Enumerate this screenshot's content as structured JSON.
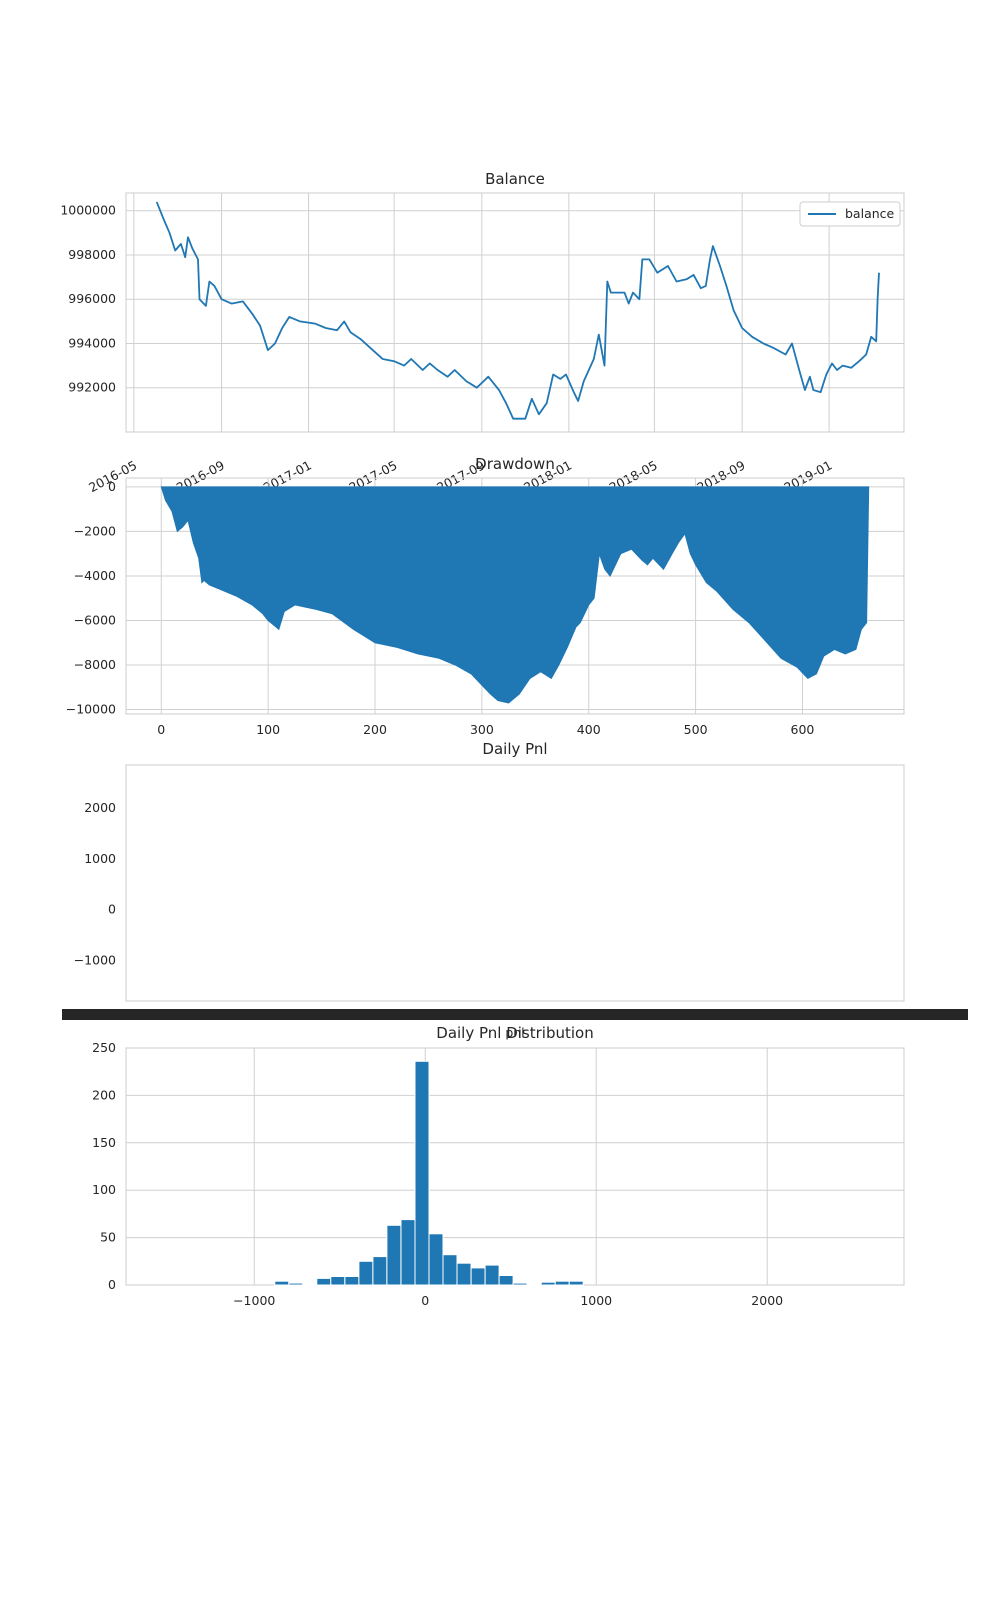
{
  "chart_data": [
    {
      "type": "line",
      "title": "Balance",
      "xlabel": "",
      "ylabel": "",
      "grid": true,
      "legend": "top-right",
      "xlim": [
        "2016-04-20",
        "2019-04-16"
      ],
      "ylim": [
        990000,
        1000800
      ],
      "x_ticks": [
        "2016-05",
        "2016-09",
        "2017-01",
        "2017-05",
        "2017-09",
        "2018-01",
        "2018-05",
        "2018-09",
        "2019-01"
      ],
      "y_ticks": [
        992000,
        994000,
        996000,
        998000,
        1000000
      ],
      "color": "#1f77b4",
      "series": [
        {
          "name": "balance",
          "points": [
            [
              "2016-06-02",
              1000400
            ],
            [
              "2016-06-12",
              999600
            ],
            [
              "2016-06-20",
              999000
            ],
            [
              "2016-06-28",
              998200
            ],
            [
              "2016-07-06",
              998500
            ],
            [
              "2016-07-12",
              997900
            ],
            [
              "2016-07-16",
              998800
            ],
            [
              "2016-07-22",
              998300
            ],
            [
              "2016-07-30",
              997800
            ],
            [
              "2016-08-01",
              996000
            ],
            [
              "2016-08-10",
              995700
            ],
            [
              "2016-08-15",
              996800
            ],
            [
              "2016-08-22",
              996600
            ],
            [
              "2016-09-01",
              996000
            ],
            [
              "2016-09-15",
              995800
            ],
            [
              "2016-10-01",
              995900
            ],
            [
              "2016-10-15",
              995300
            ],
            [
              "2016-10-25",
              994800
            ],
            [
              "2016-11-05",
              993700
            ],
            [
              "2016-11-15",
              994000
            ],
            [
              "2016-11-25",
              994700
            ],
            [
              "2016-12-05",
              995200
            ],
            [
              "2016-12-20",
              995000
            ],
            [
              "2017-01-10",
              994900
            ],
            [
              "2017-01-25",
              994700
            ],
            [
              "2017-02-10",
              994600
            ],
            [
              "2017-02-20",
              995000
            ],
            [
              "2017-03-01",
              994500
            ],
            [
              "2017-03-15",
              994200
            ],
            [
              "2017-04-01",
              993700
            ],
            [
              "2017-04-15",
              993300
            ],
            [
              "2017-05-01",
              993200
            ],
            [
              "2017-05-15",
              993000
            ],
            [
              "2017-05-25",
              993300
            ],
            [
              "2017-06-10",
              992800
            ],
            [
              "2017-06-20",
              993100
            ],
            [
              "2017-07-01",
              992800
            ],
            [
              "2017-07-15",
              992500
            ],
            [
              "2017-07-25",
              992800
            ],
            [
              "2017-08-10",
              992300
            ],
            [
              "2017-08-25",
              992000
            ],
            [
              "2017-09-10",
              992500
            ],
            [
              "2017-09-25",
              991900
            ],
            [
              "2017-10-05",
              991300
            ],
            [
              "2017-10-15",
              990600
            ],
            [
              "2017-11-01",
              990600
            ],
            [
              "2017-11-10",
              991500
            ],
            [
              "2017-11-20",
              990800
            ],
            [
              "2017-12-01",
              991300
            ],
            [
              "2017-12-10",
              992600
            ],
            [
              "2017-12-20",
              992400
            ],
            [
              "2017-12-28",
              992600
            ],
            [
              "2018-01-08",
              991800
            ],
            [
              "2018-01-14",
              991400
            ],
            [
              "2018-01-22",
              992300
            ],
            [
              "2018-02-05",
              993300
            ],
            [
              "2018-02-12",
              994400
            ],
            [
              "2018-02-20",
              993000
            ],
            [
              "2018-02-24",
              996800
            ],
            [
              "2018-03-01",
              996300
            ],
            [
              "2018-03-20",
              996300
            ],
            [
              "2018-03-26",
              995800
            ],
            [
              "2018-04-01",
              996300
            ],
            [
              "2018-04-10",
              996000
            ],
            [
              "2018-04-14",
              997800
            ],
            [
              "2018-04-24",
              997800
            ],
            [
              "2018-05-05",
              997200
            ],
            [
              "2018-05-20",
              997500
            ],
            [
              "2018-06-01",
              996800
            ],
            [
              "2018-06-15",
              996900
            ],
            [
              "2018-06-25",
              997100
            ],
            [
              "2018-07-05",
              996500
            ],
            [
              "2018-07-12",
              996600
            ],
            [
              "2018-07-18",
              997800
            ],
            [
              "2018-07-22",
              998400
            ],
            [
              "2018-08-01",
              997500
            ],
            [
              "2018-08-10",
              996600
            ],
            [
              "2018-08-20",
              995500
            ],
            [
              "2018-09-01",
              994700
            ],
            [
              "2018-09-15",
              994300
            ],
            [
              "2018-10-01",
              994000
            ],
            [
              "2018-10-15",
              993800
            ],
            [
              "2018-11-01",
              993500
            ],
            [
              "2018-11-10",
              994000
            ],
            [
              "2018-11-20",
              992800
            ],
            [
              "2018-11-28",
              991900
            ],
            [
              "2018-12-05",
              992500
            ],
            [
              "2018-12-10",
              991900
            ],
            [
              "2018-12-20",
              991800
            ],
            [
              "2018-12-28",
              992600
            ],
            [
              "2019-01-05",
              993100
            ],
            [
              "2019-01-12",
              992800
            ],
            [
              "2019-01-20",
              993000
            ],
            [
              "2019-02-01",
              992900
            ],
            [
              "2019-02-12",
              993200
            ],
            [
              "2019-02-22",
              993500
            ],
            [
              "2019-03-01",
              994300
            ],
            [
              "2019-03-08",
              994100
            ],
            [
              "2019-03-10",
              996000
            ],
            [
              "2019-03-12",
              997200
            ]
          ]
        }
      ]
    },
    {
      "type": "area",
      "title": "Drawdown",
      "xlabel": "",
      "ylabel": "",
      "grid": true,
      "xlim": [
        -33,
        695
      ],
      "ylim": [
        -10200,
        400
      ],
      "x_ticks": [
        0,
        100,
        200,
        300,
        400,
        500,
        600
      ],
      "y_ticks": [
        0,
        -2000,
        -4000,
        -6000,
        -8000,
        -10000
      ],
      "color": "#1f77b4",
      "x": [
        0,
        4,
        10,
        15,
        20,
        25,
        30,
        35,
        38,
        40,
        45,
        55,
        70,
        85,
        95,
        100,
        105,
        110,
        115,
        125,
        135,
        145,
        160,
        180,
        200,
        220,
        240,
        260,
        275,
        290,
        300,
        308,
        315,
        325,
        335,
        345,
        355,
        365,
        372,
        380,
        388,
        392,
        396,
        400,
        405,
        410,
        412,
        415,
        420,
        430,
        440,
        450,
        455,
        460,
        470,
        478,
        484,
        490,
        495,
        500,
        510,
        520,
        535,
        550,
        565,
        580,
        595,
        605,
        613,
        620,
        630,
        640,
        650,
        655,
        660,
        662
      ],
      "values": [
        0,
        -600,
        -1100,
        -2000,
        -1800,
        -1500,
        -2500,
        -3200,
        -4300,
        -4200,
        -4400,
        -4600,
        -4900,
        -5300,
        -5700,
        -6000,
        -6200,
        -6400,
        -5600,
        -5300,
        -5400,
        -5500,
        -5700,
        -6400,
        -7000,
        -7200,
        -7500,
        -7700,
        -8000,
        -8400,
        -8900,
        -9300,
        -9600,
        -9700,
        -9300,
        -8600,
        -8300,
        -8600,
        -8000,
        -7200,
        -6300,
        -6100,
        -5700,
        -5300,
        -5000,
        -3000,
        -3300,
        -3700,
        -4000,
        -3000,
        -2800,
        -3300,
        -3500,
        -3200,
        -3700,
        -3000,
        -2500,
        -2100,
        -3000,
        -3500,
        -4300,
        -4700,
        -5500,
        -6100,
        -6900,
        -7700,
        -8100,
        -8600,
        -8400,
        -7600,
        -7300,
        -7500,
        -7300,
        -6400,
        -6100,
        0
      ]
    },
    {
      "type": "bar",
      "title": "Daily Pnl",
      "xlabel": "",
      "ylabel": "",
      "grid": false,
      "ylim": [
        -1800,
        2850
      ],
      "y_ticks": [
        2000,
        1000,
        0,
        -1000
      ],
      "x_tick_labels": "overlapping, illegible",
      "values": []
    },
    {
      "type": "bar",
      "title": "Daily Pnl Distribution",
      "overlay_text": "pnl",
      "xlabel": "",
      "ylabel": "",
      "grid": true,
      "xlim": [
        -1750,
        2800
      ],
      "ylim": [
        0,
        250
      ],
      "x_ticks": [
        -1000,
        0,
        1000,
        2000
      ],
      "y_ticks": [
        0,
        50,
        100,
        150,
        200,
        250
      ],
      "color": "#1f77b4",
      "bin_width": 82,
      "bins": [
        [
          -880,
          4
        ],
        [
          -798,
          2
        ],
        [
          -716,
          1
        ],
        [
          -634,
          7
        ],
        [
          -552,
          9
        ],
        [
          -470,
          9
        ],
        [
          -388,
          25
        ],
        [
          -306,
          30
        ],
        [
          -224,
          63
        ],
        [
          -142,
          69
        ],
        [
          -60,
          236
        ],
        [
          22,
          54
        ],
        [
          104,
          32
        ],
        [
          186,
          23
        ],
        [
          268,
          18
        ],
        [
          350,
          21
        ],
        [
          432,
          10
        ],
        [
          514,
          2
        ],
        [
          596,
          1
        ],
        [
          678,
          3
        ],
        [
          760,
          4
        ],
        [
          842,
          4
        ]
      ]
    }
  ]
}
